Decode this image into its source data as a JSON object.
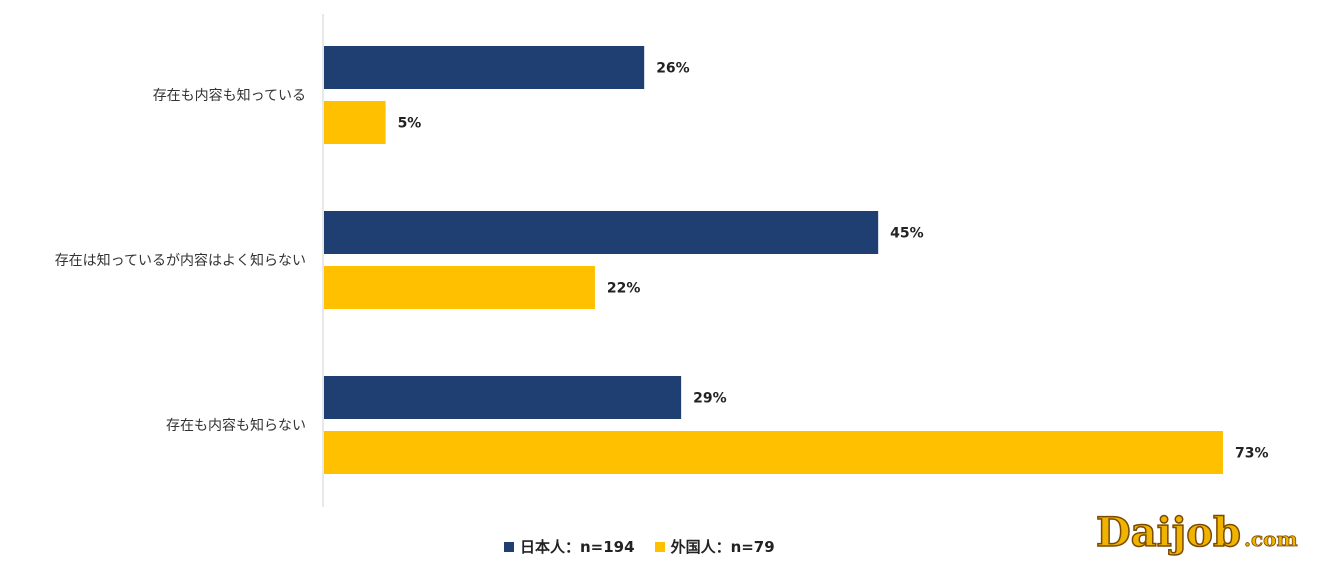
{
  "chart_data": {
    "type": "bar",
    "orientation": "horizontal",
    "categories": [
      "存在も内容も知っている",
      "存在は知っているが内容はよく知らない",
      "存在も内容も知らない"
    ],
    "series": [
      {
        "name": "日本人：n=194",
        "color": "#1F3F73",
        "values": [
          26,
          45,
          29
        ],
        "labels": [
          "26%",
          "45%",
          "29%"
        ]
      },
      {
        "name": "外国人：n=79",
        "color": "#FFC000",
        "values": [
          5,
          22,
          73
        ],
        "labels": [
          "5%",
          "22%",
          "73%"
        ]
      }
    ],
    "xlim": [
      0,
      73
    ],
    "grid": false,
    "legend": "bottom-center"
  },
  "logo": {
    "text": "Daijob",
    "suffix": ".com",
    "color": "#F0B400",
    "outline": "#7A4A00"
  }
}
